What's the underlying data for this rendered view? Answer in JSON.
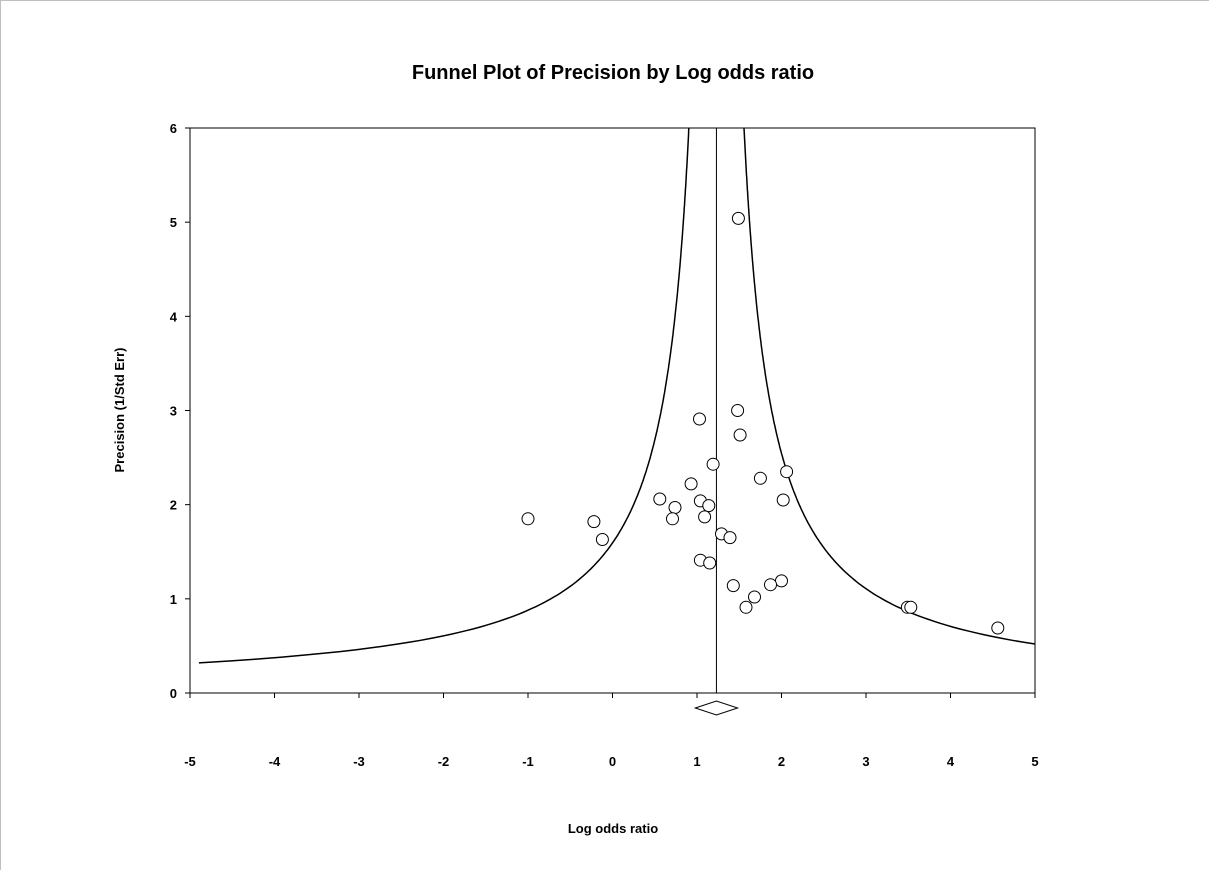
{
  "chart_data": {
    "type": "scatter",
    "title": "Funnel Plot of Precision by Log odds ratio",
    "xlabel": "Log odds ratio",
    "ylabel": "Precision (1/Std Err)",
    "xlim": [
      -5,
      5
    ],
    "ylim": [
      0,
      6
    ],
    "xticks": [
      "-5",
      "-4",
      "-3",
      "-2",
      "-1",
      "0",
      "1",
      "2",
      "3",
      "4",
      "5"
    ],
    "yticks": [
      "0",
      "1",
      "2",
      "3",
      "4",
      "5",
      "6"
    ],
    "pooled_estimate": 1.23,
    "grid": false,
    "points": [
      {
        "x": 1.49,
        "y": 5.04
      },
      {
        "x": 1.48,
        "y": 3.0
      },
      {
        "x": 1.03,
        "y": 2.91
      },
      {
        "x": 1.51,
        "y": 2.74
      },
      {
        "x": 1.19,
        "y": 2.43
      },
      {
        "x": 2.06,
        "y": 2.35
      },
      {
        "x": 1.75,
        "y": 2.28
      },
      {
        "x": 0.93,
        "y": 2.22
      },
      {
        "x": 0.56,
        "y": 2.06
      },
      {
        "x": 1.04,
        "y": 2.04
      },
      {
        "x": 2.02,
        "y": 2.05
      },
      {
        "x": 1.14,
        "y": 1.99
      },
      {
        "x": 0.74,
        "y": 1.97
      },
      {
        "x": 1.09,
        "y": 1.87
      },
      {
        "x": 0.71,
        "y": 1.85
      },
      {
        "x": -1.0,
        "y": 1.85
      },
      {
        "x": -0.22,
        "y": 1.82
      },
      {
        "x": 1.29,
        "y": 1.69
      },
      {
        "x": 1.39,
        "y": 1.65
      },
      {
        "x": -0.12,
        "y": 1.63
      },
      {
        "x": 1.04,
        "y": 1.41
      },
      {
        "x": 1.15,
        "y": 1.38
      },
      {
        "x": 2.0,
        "y": 1.19
      },
      {
        "x": 1.87,
        "y": 1.15
      },
      {
        "x": 1.43,
        "y": 1.14
      },
      {
        "x": 1.68,
        "y": 1.02
      },
      {
        "x": 1.58,
        "y": 0.91
      },
      {
        "x": 3.49,
        "y": 0.91
      },
      {
        "x": 3.53,
        "y": 0.91
      },
      {
        "x": 4.56,
        "y": 0.69
      }
    ]
  }
}
